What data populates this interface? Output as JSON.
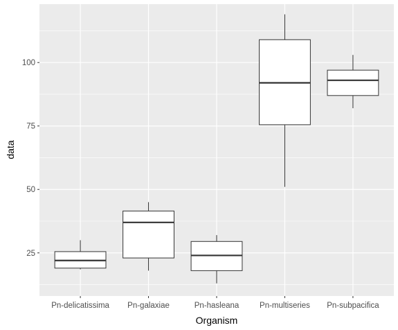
{
  "chart_data": {
    "type": "boxplot",
    "xlabel": "Organism",
    "ylabel": "data",
    "ylim": [
      8,
      123
    ],
    "yticks": [
      25,
      50,
      75,
      100
    ],
    "grid": true,
    "categories": [
      "Pn-delicatissima",
      "Pn-galaxiae",
      "Pn-hasleana",
      "Pn-multiseries",
      "Pn-subpacifica"
    ],
    "boxes": [
      {
        "category": "Pn-delicatissima",
        "min": 18.5,
        "q1": 19,
        "median": 22,
        "q3": 25.5,
        "max": 30
      },
      {
        "category": "Pn-galaxiae",
        "min": 18,
        "q1": 23,
        "median": 37,
        "q3": 41.5,
        "max": 45
      },
      {
        "category": "Pn-hasleana",
        "min": 13,
        "q1": 18,
        "median": 24,
        "q3": 29.5,
        "max": 32
      },
      {
        "category": "Pn-multiseries",
        "min": 51,
        "q1": 75.5,
        "median": 92,
        "q3": 109,
        "max": 119
      },
      {
        "category": "Pn-subpacifica",
        "min": 82,
        "q1": 87,
        "median": 93,
        "q3": 97,
        "max": 103
      }
    ],
    "colors": {
      "panel": "#ebebeb",
      "grid_major": "#ffffff",
      "box_fill": "#ffffff",
      "box_stroke": "#333333",
      "tick_text": "#4d4d4d"
    }
  }
}
